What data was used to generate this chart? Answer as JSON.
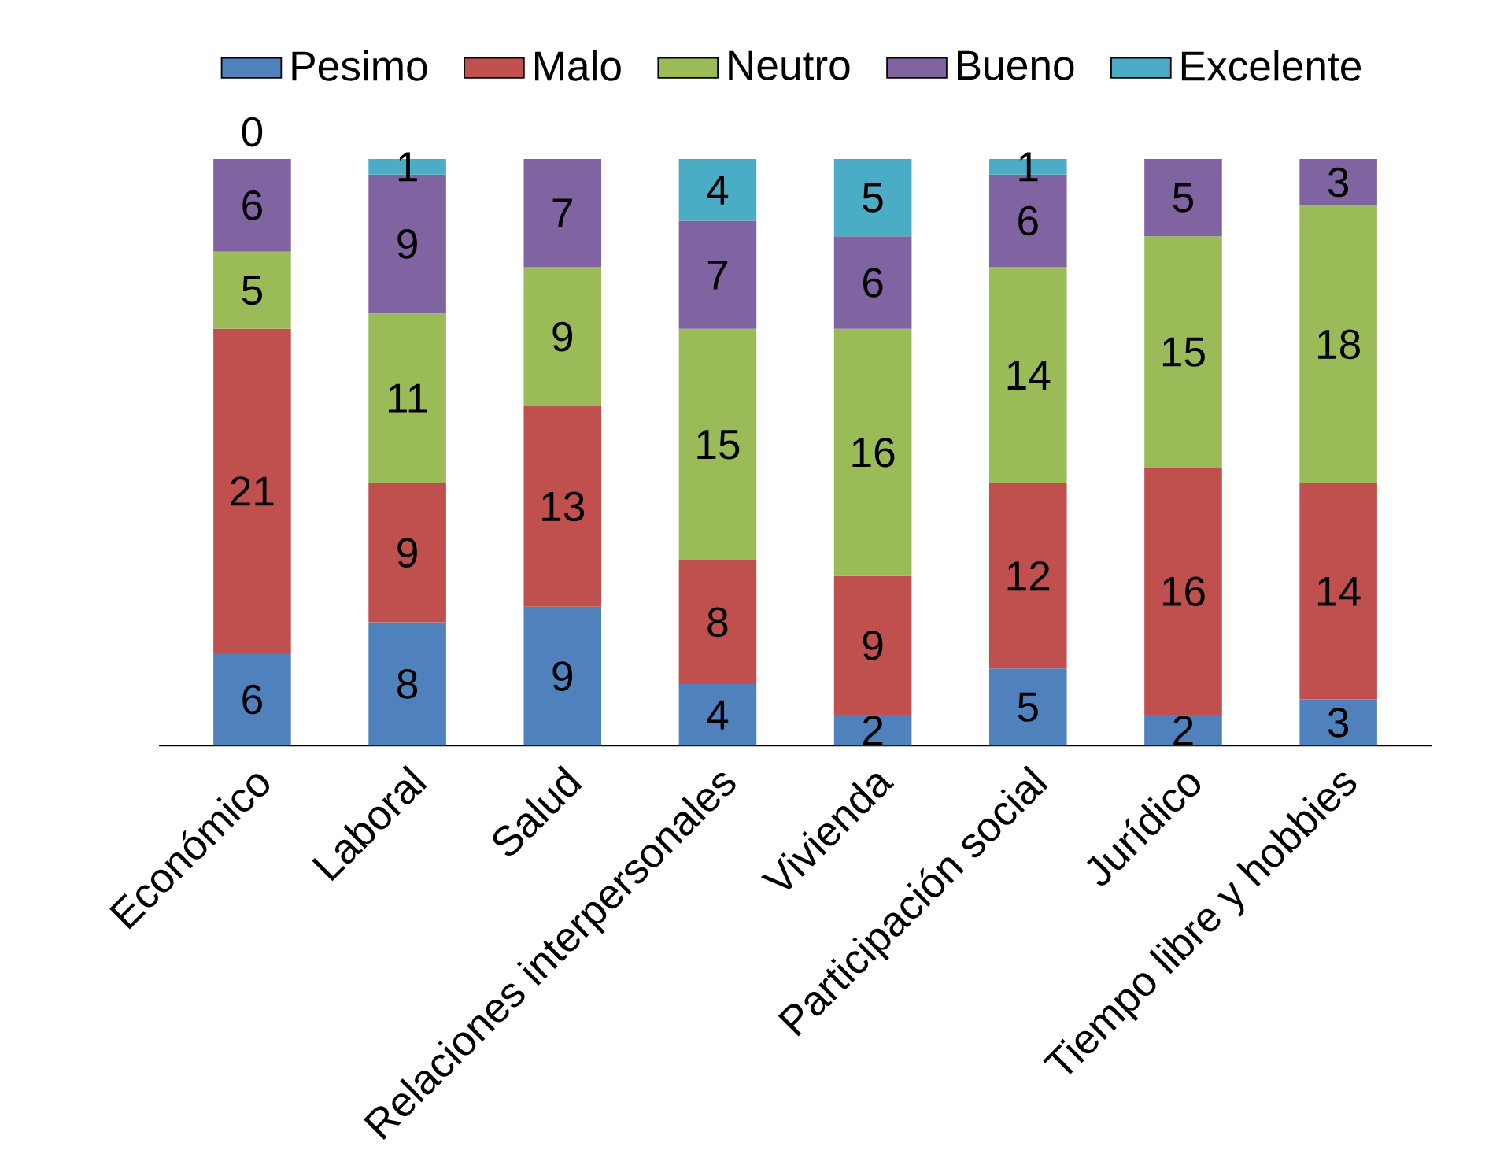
{
  "chart_data": {
    "type": "bar",
    "stacked": true,
    "data_labels": true,
    "legend": "top",
    "categories": [
      "Económico",
      "Laboral",
      "Salud",
      "Relaciones interpersonales",
      "Vivienda",
      "Participación social",
      "Jurídico",
      "Tiempo libre y hobbies"
    ],
    "series": [
      {
        "name": "Pesimo",
        "color": "#4f81bd",
        "values": [
          6,
          8,
          9,
          4,
          2,
          5,
          2,
          3
        ]
      },
      {
        "name": "Malo",
        "color": "#c0504d",
        "values": [
          21,
          9,
          13,
          8,
          9,
          12,
          16,
          14
        ]
      },
      {
        "name": "Neutro",
        "color": "#9bbb59",
        "values": [
          5,
          11,
          9,
          15,
          16,
          14,
          15,
          18
        ]
      },
      {
        "name": "Bueno",
        "color": "#8064a2",
        "values": [
          6,
          9,
          7,
          7,
          6,
          6,
          5,
          3
        ]
      },
      {
        "name": "Excelente",
        "color": "#4bacc6",
        "values": [
          0,
          1,
          null,
          4,
          5,
          1,
          null,
          null
        ]
      }
    ]
  }
}
